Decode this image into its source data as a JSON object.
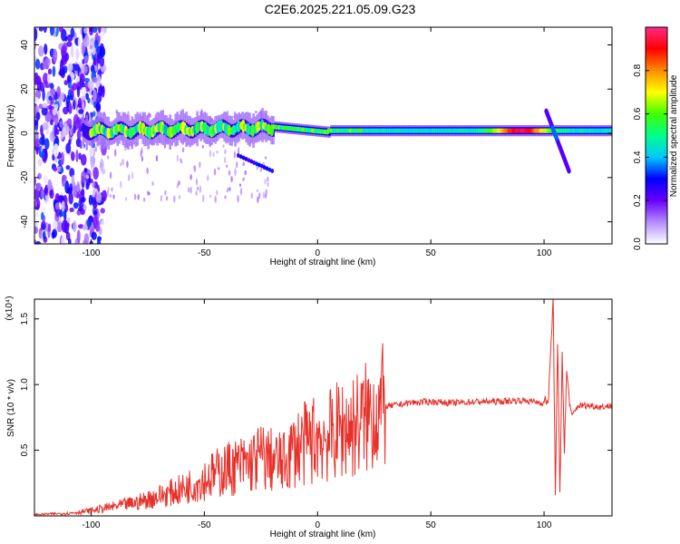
{
  "title": "C2E6.2025.221.05.09.G23",
  "colors": {
    "snr_line": "#e8302a",
    "background": "#ffffff",
    "axis": "#000000"
  },
  "chart_data": [
    {
      "type": "heatmap",
      "xlabel": "Height of straight line (km)",
      "ylabel": "Frequency (Hz)",
      "xlim": [
        -125,
        130
      ],
      "ylim": [
        -50,
        48
      ],
      "xticks": [
        -100,
        -50,
        0,
        50,
        100
      ],
      "yticks": [
        -40,
        -20,
        0,
        20,
        40
      ],
      "colorbar": {
        "label": "Normalized spectral amplitude",
        "range": [
          0,
          1
        ],
        "ticks": [
          "0.0",
          "0.2",
          "0.4",
          "0.6",
          "0.8"
        ],
        "colormap": [
          "#ffffff",
          "#b48cff",
          "#6a00ff",
          "#0000ff",
          "#00c8ff",
          "#00ff8c",
          "#40ff00",
          "#ffff00",
          "#ff8c00",
          "#ff0000",
          "#ff2a8a"
        ]
      },
      "features": [
        {
          "name": "dispersed noise",
          "x_range": [
            -125,
            -100
          ],
          "f_range": [
            -50,
            48
          ],
          "amplitude": 0.1
        },
        {
          "name": "main trace",
          "x_range": [
            -100,
            130
          ],
          "f_range": [
            -3,
            5
          ],
          "amplitude_peak": 1.0,
          "peak_x": 90
        },
        {
          "name": "branch",
          "x_range": [
            -35,
            -20
          ],
          "f_range": [
            -17,
            -10
          ]
        },
        {
          "name": "disturbance",
          "x_range": [
            101,
            111
          ],
          "f_range": [
            -17,
            10
          ]
        }
      ]
    },
    {
      "type": "line",
      "xlabel": "Height of straight line (km)",
      "ylabel": "SNR (10 * v/v)",
      "y_multiplier": "(x10⁴)",
      "xlim": [
        -125,
        130
      ],
      "ylim": [
        0,
        1.65
      ],
      "xticks": [
        -100,
        -50,
        0,
        50,
        100
      ],
      "yticks": [
        "0.5",
        "1.0",
        "1.5"
      ],
      "series": [
        {
          "x": [
            -125,
            -110,
            -100,
            -90,
            -80,
            -70,
            -60,
            -50,
            -40,
            -30,
            -25,
            -20,
            -15,
            -10,
            -5,
            0,
            5,
            10,
            15,
            20,
            25,
            30,
            40,
            50,
            60,
            70,
            80,
            90,
            95,
            100,
            102,
            104,
            105,
            106,
            107,
            108,
            109,
            110,
            112,
            115,
            120,
            125,
            130
          ],
          "y": [
            0.01,
            0.02,
            0.04,
            0.07,
            0.1,
            0.15,
            0.2,
            0.28,
            0.36,
            0.4,
            0.45,
            0.42,
            0.4,
            0.52,
            0.55,
            0.6,
            0.6,
            0.66,
            0.68,
            0.72,
            0.8,
            0.83,
            0.86,
            0.87,
            0.86,
            0.87,
            0.87,
            0.88,
            0.87,
            0.86,
            0.9,
            1.65,
            0.2,
            1.3,
            0.15,
            1.25,
            0.5,
            1.1,
            0.75,
            0.84,
            0.84,
            0.83,
            0.84
          ]
        }
      ]
    }
  ]
}
